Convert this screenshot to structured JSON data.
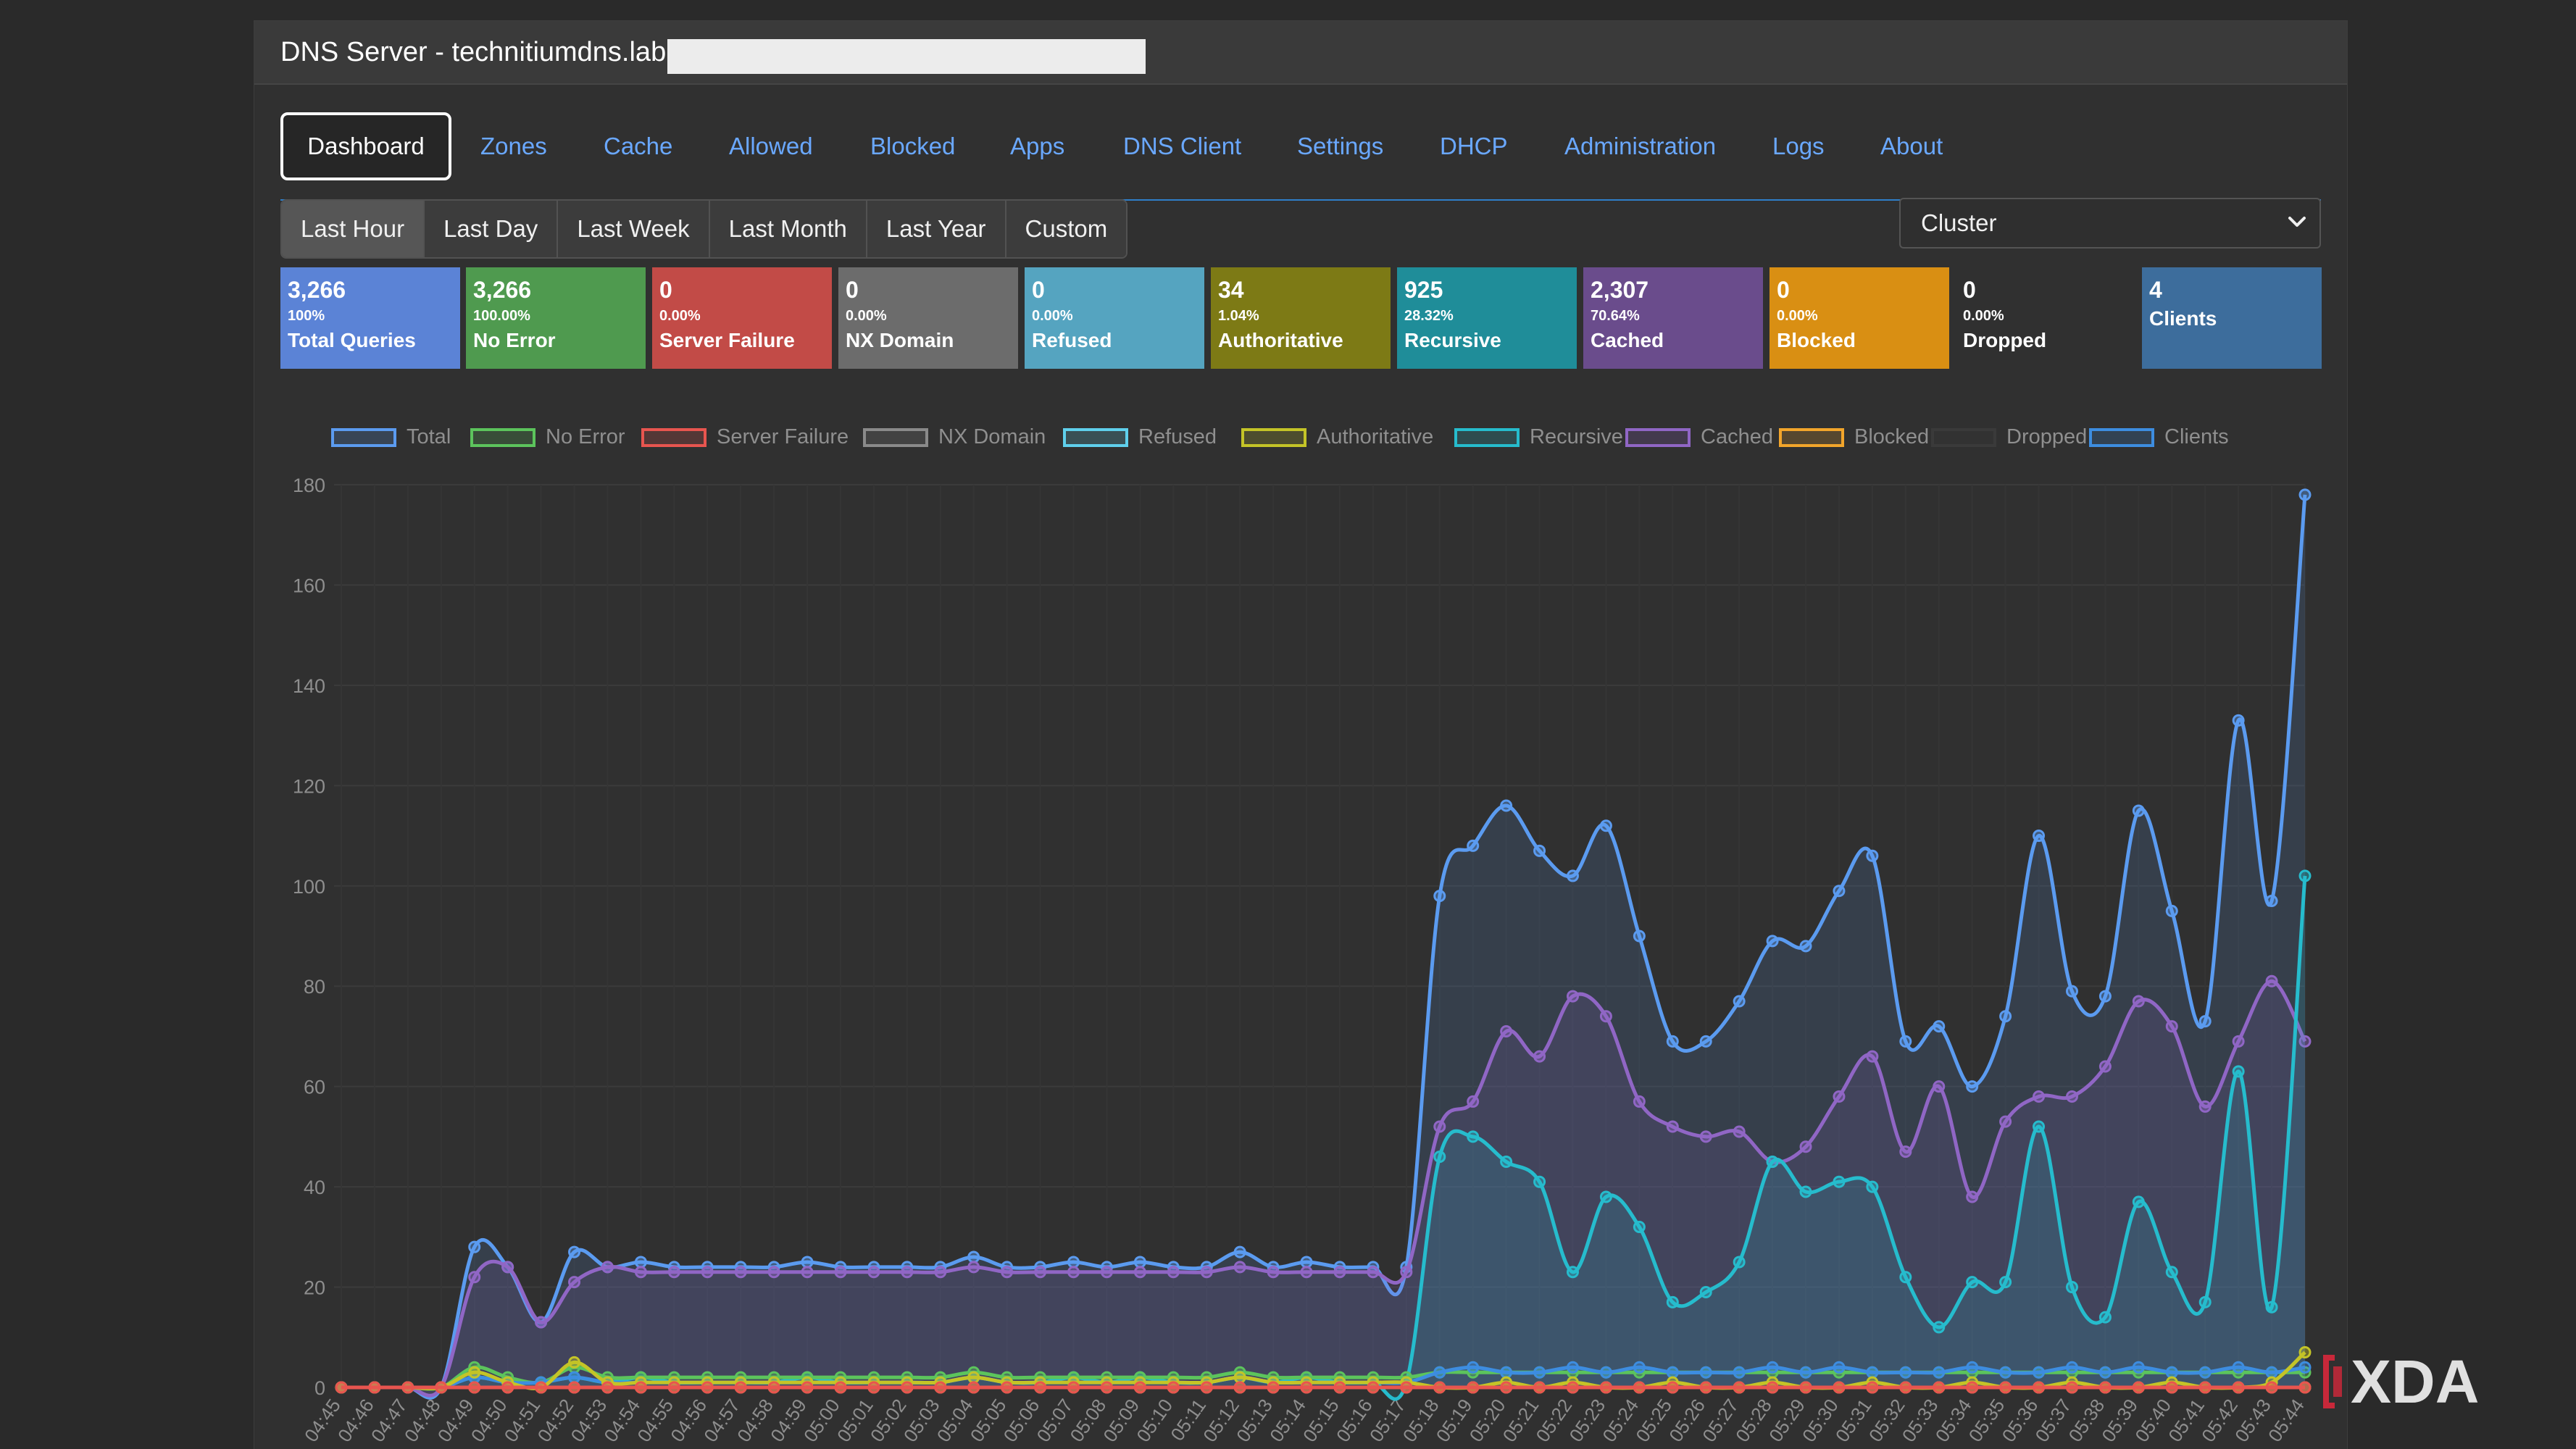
{
  "app": {
    "title": "DNS Server - technitiumdns.lab."
  },
  "nav": {
    "tabs": [
      {
        "label": "Dashboard",
        "active": true
      },
      {
        "label": "Zones"
      },
      {
        "label": "Cache"
      },
      {
        "label": "Allowed"
      },
      {
        "label": "Blocked"
      },
      {
        "label": "Apps"
      },
      {
        "label": "DNS Client"
      },
      {
        "label": "Settings"
      },
      {
        "label": "DHCP"
      },
      {
        "label": "Administration"
      },
      {
        "label": "Logs"
      },
      {
        "label": "About"
      }
    ]
  },
  "time_range": {
    "options": [
      "Last Hour",
      "Last Day",
      "Last Week",
      "Last Month",
      "Last Year",
      "Custom"
    ],
    "selected": "Last Hour"
  },
  "node_select": {
    "selected": "Cluster",
    "icon": "chevron-down-icon"
  },
  "stats": [
    {
      "value": "3,266",
      "percent": "100%",
      "label": "Total Queries",
      "color": "#5b83d6"
    },
    {
      "value": "3,266",
      "percent": "100.00%",
      "label": "No Error",
      "color": "#4f9a4f"
    },
    {
      "value": "0",
      "percent": "0.00%",
      "label": "Server Failure",
      "color": "#c24b47"
    },
    {
      "value": "0",
      "percent": "0.00%",
      "label": "NX Domain",
      "color": "#6c6c6c"
    },
    {
      "value": "0",
      "percent": "0.00%",
      "label": "Refused",
      "color": "#55a4c0"
    },
    {
      "value": "34",
      "percent": "1.04%",
      "label": "Authoritative",
      "color": "#7d7a15"
    },
    {
      "value": "925",
      "percent": "28.32%",
      "label": "Recursive",
      "color": "#1f8d99"
    },
    {
      "value": "2,307",
      "percent": "70.64%",
      "label": "Cached",
      "color": "#6a4c8c"
    },
    {
      "value": "0",
      "percent": "0.00%",
      "label": "Blocked",
      "color": "#d98f13"
    },
    {
      "value": "0",
      "percent": "0.00%",
      "label": "Dropped",
      "color": "#303030"
    },
    {
      "value": "4",
      "percent": "",
      "label": "Clients",
      "color": "#3d6d9c"
    }
  ],
  "chart_data": {
    "type": "line",
    "title": "",
    "xlabel": "",
    "ylabel": "",
    "ylim": [
      0,
      180
    ],
    "yticks": [
      0,
      20,
      40,
      60,
      80,
      100,
      120,
      140,
      160,
      180
    ],
    "grid": true,
    "legend_position": "top",
    "x": [
      "04:45",
      "04:46",
      "04:47",
      "04:48",
      "04:49",
      "04:50",
      "04:51",
      "04:52",
      "04:53",
      "04:54",
      "04:55",
      "04:56",
      "04:57",
      "04:58",
      "04:59",
      "05:00",
      "05:01",
      "05:02",
      "05:03",
      "05:04",
      "05:05",
      "05:06",
      "05:07",
      "05:08",
      "05:09",
      "05:10",
      "05:11",
      "05:12",
      "05:13",
      "05:14",
      "05:15",
      "05:16",
      "05:17",
      "05:18",
      "05:19",
      "05:20",
      "05:21",
      "05:22",
      "05:23",
      "05:24",
      "05:25",
      "05:26",
      "05:27",
      "05:28",
      "05:29",
      "05:30",
      "05:31",
      "05:32",
      "05:33",
      "05:34",
      "05:35",
      "05:36",
      "05:37",
      "05:38",
      "05:39",
      "05:40",
      "05:41",
      "05:42",
      "05:43",
      "05:44"
    ],
    "series": [
      {
        "name": "Total",
        "color": "#5b9bf0",
        "fill": true,
        "values": [
          0,
          0,
          0,
          0,
          28,
          24,
          13,
          27,
          24,
          25,
          24,
          24,
          24,
          24,
          25,
          24,
          24,
          24,
          24,
          26,
          24,
          24,
          25,
          24,
          25,
          24,
          24,
          27,
          24,
          25,
          24,
          24,
          24,
          98,
          108,
          116,
          107,
          102,
          112,
          90,
          69,
          69,
          77,
          89,
          88,
          99,
          106,
          69,
          72,
          60,
          74,
          110,
          79,
          78,
          115,
          95,
          73,
          133,
          97,
          178
        ]
      },
      {
        "name": "No Error",
        "color": "#5cc45c",
        "fill": false,
        "values": [
          0,
          0,
          0,
          0,
          4,
          2,
          1,
          4,
          2,
          2,
          2,
          2,
          2,
          2,
          2,
          2,
          2,
          2,
          2,
          3,
          2,
          2,
          2,
          2,
          2,
          2,
          2,
          3,
          2,
          2,
          2,
          2,
          2,
          3,
          3,
          3,
          3,
          3,
          3,
          3,
          3,
          3,
          3,
          3,
          3,
          3,
          3,
          3,
          3,
          3,
          3,
          3,
          3,
          3,
          3,
          3,
          3,
          3,
          3,
          3
        ]
      },
      {
        "name": "Server Failure",
        "color": "#e8554f",
        "fill": false,
        "values": [
          0,
          0,
          0,
          0,
          0,
          0,
          0,
          0,
          0,
          0,
          0,
          0,
          0,
          0,
          0,
          0,
          0,
          0,
          0,
          0,
          0,
          0,
          0,
          0,
          0,
          0,
          0,
          0,
          0,
          0,
          0,
          0,
          0,
          0,
          0,
          0,
          0,
          0,
          0,
          0,
          0,
          0,
          0,
          0,
          0,
          0,
          0,
          0,
          0,
          0,
          0,
          0,
          0,
          0,
          0,
          0,
          0,
          0,
          0,
          0
        ]
      },
      {
        "name": "NX Domain",
        "color": "#8a8a8a",
        "fill": false,
        "values": [
          0,
          0,
          0,
          0,
          0,
          0,
          0,
          0,
          0,
          0,
          0,
          0,
          0,
          0,
          0,
          0,
          0,
          0,
          0,
          0,
          0,
          0,
          0,
          0,
          0,
          0,
          0,
          0,
          0,
          0,
          0,
          0,
          0,
          0,
          0,
          0,
          0,
          0,
          0,
          0,
          0,
          0,
          0,
          0,
          0,
          0,
          0,
          0,
          0,
          0,
          0,
          0,
          0,
          0,
          0,
          0,
          0,
          0,
          0,
          0
        ]
      },
      {
        "name": "Refused",
        "color": "#5fd0ec",
        "fill": false,
        "values": [
          0,
          0,
          0,
          0,
          0,
          0,
          0,
          0,
          0,
          0,
          0,
          0,
          0,
          0,
          0,
          0,
          0,
          0,
          0,
          0,
          0,
          0,
          0,
          0,
          0,
          0,
          0,
          0,
          0,
          0,
          0,
          0,
          0,
          0,
          0,
          0,
          0,
          0,
          0,
          0,
          0,
          0,
          0,
          0,
          0,
          0,
          0,
          0,
          0,
          0,
          0,
          0,
          0,
          0,
          0,
          0,
          0,
          0,
          0,
          0
        ]
      },
      {
        "name": "Authoritative",
        "color": "#c4c427",
        "fill": false,
        "values": [
          0,
          0,
          0,
          0,
          3,
          1,
          0,
          5,
          1,
          1,
          1,
          1,
          1,
          1,
          1,
          1,
          1,
          1,
          1,
          2,
          1,
          1,
          1,
          1,
          1,
          1,
          1,
          2,
          1,
          1,
          1,
          1,
          1,
          0,
          0,
          1,
          0,
          1,
          0,
          0,
          1,
          0,
          0,
          1,
          0,
          0,
          1,
          0,
          0,
          1,
          0,
          0,
          1,
          0,
          0,
          1,
          0,
          0,
          1,
          7
        ]
      },
      {
        "name": "Recursive",
        "color": "#26bccd",
        "fill": true,
        "values": [
          0,
          0,
          0,
          0,
          2,
          1,
          1,
          2,
          1,
          2,
          1,
          1,
          1,
          1,
          2,
          1,
          1,
          1,
          1,
          2,
          1,
          1,
          2,
          1,
          2,
          1,
          1,
          2,
          1,
          2,
          1,
          1,
          1,
          46,
          50,
          45,
          41,
          23,
          38,
          32,
          17,
          19,
          25,
          45,
          39,
          41,
          40,
          22,
          12,
          21,
          21,
          52,
          20,
          14,
          37,
          23,
          17,
          63,
          16,
          102
        ]
      },
      {
        "name": "Cached",
        "color": "#9066c5",
        "fill": true,
        "values": [
          0,
          0,
          0,
          0,
          22,
          24,
          13,
          21,
          24,
          23,
          23,
          23,
          23,
          23,
          23,
          23,
          23,
          23,
          23,
          24,
          23,
          23,
          23,
          23,
          23,
          23,
          23,
          24,
          23,
          23,
          23,
          23,
          23,
          52,
          57,
          71,
          66,
          78,
          74,
          57,
          52,
          50,
          51,
          45,
          48,
          58,
          66,
          47,
          60,
          38,
          53,
          58,
          58,
          64,
          77,
          72,
          56,
          69,
          81,
          69
        ]
      },
      {
        "name": "Blocked",
        "color": "#f2a52b",
        "fill": false,
        "values": [
          0,
          0,
          0,
          0,
          0,
          0,
          0,
          0,
          0,
          0,
          0,
          0,
          0,
          0,
          0,
          0,
          0,
          0,
          0,
          0,
          0,
          0,
          0,
          0,
          0,
          0,
          0,
          0,
          0,
          0,
          0,
          0,
          0,
          0,
          0,
          0,
          0,
          0,
          0,
          0,
          0,
          0,
          0,
          0,
          0,
          0,
          0,
          0,
          0,
          0,
          0,
          0,
          0,
          0,
          0,
          0,
          0,
          0,
          0,
          0
        ]
      },
      {
        "name": "Dropped",
        "color": "#3a3a3a",
        "fill": false,
        "values": [
          0,
          0,
          0,
          0,
          0,
          0,
          0,
          0,
          0,
          0,
          0,
          0,
          0,
          0,
          0,
          0,
          0,
          0,
          0,
          0,
          0,
          0,
          0,
          0,
          0,
          0,
          0,
          0,
          0,
          0,
          0,
          0,
          0,
          0,
          0,
          0,
          0,
          0,
          0,
          0,
          0,
          0,
          0,
          0,
          0,
          0,
          0,
          0,
          0,
          0,
          0,
          0,
          0,
          0,
          0,
          0,
          0,
          0,
          0,
          0
        ]
      },
      {
        "name": "Clients",
        "color": "#3d8de0",
        "fill": false,
        "values": [
          0,
          0,
          0,
          0,
          2,
          1,
          1,
          2,
          1,
          1,
          1,
          1,
          1,
          1,
          1,
          1,
          1,
          1,
          1,
          2,
          1,
          1,
          1,
          1,
          1,
          1,
          1,
          2,
          1,
          1,
          1,
          1,
          1,
          3,
          4,
          3,
          3,
          4,
          3,
          4,
          3,
          3,
          3,
          4,
          3,
          4,
          3,
          3,
          3,
          4,
          3,
          3,
          4,
          3,
          4,
          3,
          3,
          4,
          3,
          4
        ]
      }
    ]
  },
  "watermark": {
    "text": "XDA"
  }
}
